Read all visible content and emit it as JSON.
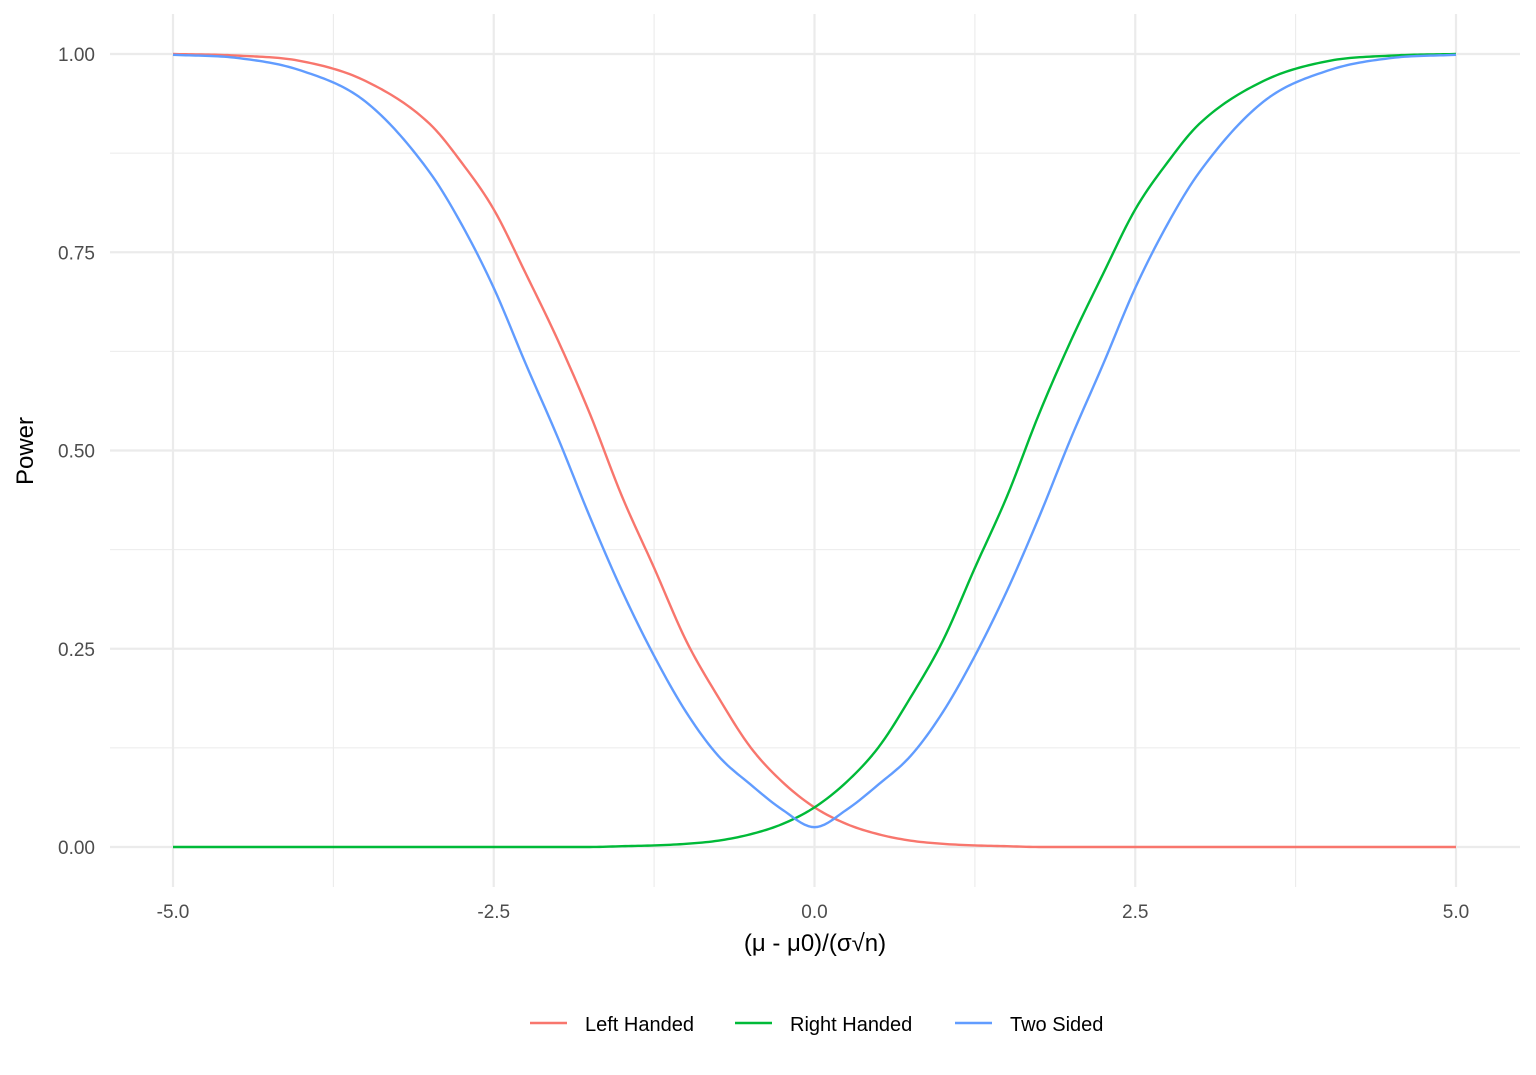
{
  "chart_data": {
    "type": "line",
    "title": "",
    "xlabel": "(μ - μ0)/(σ√n)",
    "ylabel": "Power",
    "xlim": [
      -5.0,
      5.0
    ],
    "ylim": [
      0.0,
      1.0
    ],
    "x_ticks": [
      -5.0,
      -2.5,
      0.0,
      2.5,
      5.0
    ],
    "x_tick_labels": [
      "-5.0",
      "-2.5",
      "0.0",
      "2.5",
      "5.0"
    ],
    "y_ticks": [
      0.0,
      0.25,
      0.5,
      0.75,
      1.0
    ],
    "y_tick_labels": [
      "0.00",
      "0.25",
      "0.50",
      "0.75",
      "1.00"
    ],
    "grid": true,
    "legend_position": "bottom",
    "x": [
      -5.0,
      -4.5,
      -4.0,
      -3.5,
      -3.0,
      -2.75,
      -2.5,
      -2.25,
      -2.0,
      -1.75,
      -1.5,
      -1.25,
      -1.0,
      -0.75,
      -0.5,
      -0.25,
      0.0,
      0.25,
      0.5,
      0.75,
      1.0,
      1.25,
      1.5,
      1.75,
      2.0,
      2.25,
      2.5,
      2.75,
      3.0,
      3.5,
      4.0,
      4.5,
      5.0
    ],
    "series": [
      {
        "name": "Left Handed",
        "color": "#F8766D",
        "values": [
          1.0,
          0.998,
          0.991,
          0.966,
          0.912,
          0.863,
          0.804,
          0.723,
          0.639,
          0.546,
          0.442,
          0.352,
          0.26,
          0.189,
          0.126,
          0.082,
          0.05,
          0.029,
          0.016,
          0.008,
          0.004,
          0.002,
          0.001,
          0.0,
          0.0,
          0.0,
          0.0,
          0.0,
          0.0,
          0.0,
          0.0,
          0.0,
          0.0
        ]
      },
      {
        "name": "Right Handed",
        "color": "#00BA38",
        "values": [
          0.0,
          0.0,
          0.0,
          0.0,
          0.0,
          0.0,
          0.0,
          0.0,
          0.0,
          0.0,
          0.001,
          0.002,
          0.004,
          0.008,
          0.016,
          0.029,
          0.05,
          0.082,
          0.126,
          0.189,
          0.26,
          0.352,
          0.442,
          0.546,
          0.639,
          0.723,
          0.804,
          0.863,
          0.912,
          0.966,
          0.991,
          0.998,
          1.0
        ]
      },
      {
        "name": "Two Sided",
        "color": "#619CFF",
        "values": [
          0.999,
          0.995,
          0.979,
          0.94,
          0.851,
          0.785,
          0.705,
          0.609,
          0.516,
          0.416,
          0.323,
          0.241,
          0.17,
          0.115,
          0.079,
          0.047,
          0.025,
          0.047,
          0.079,
          0.115,
          0.17,
          0.241,
          0.323,
          0.416,
          0.516,
          0.609,
          0.705,
          0.785,
          0.851,
          0.94,
          0.979,
          0.995,
          0.999
        ]
      }
    ]
  }
}
